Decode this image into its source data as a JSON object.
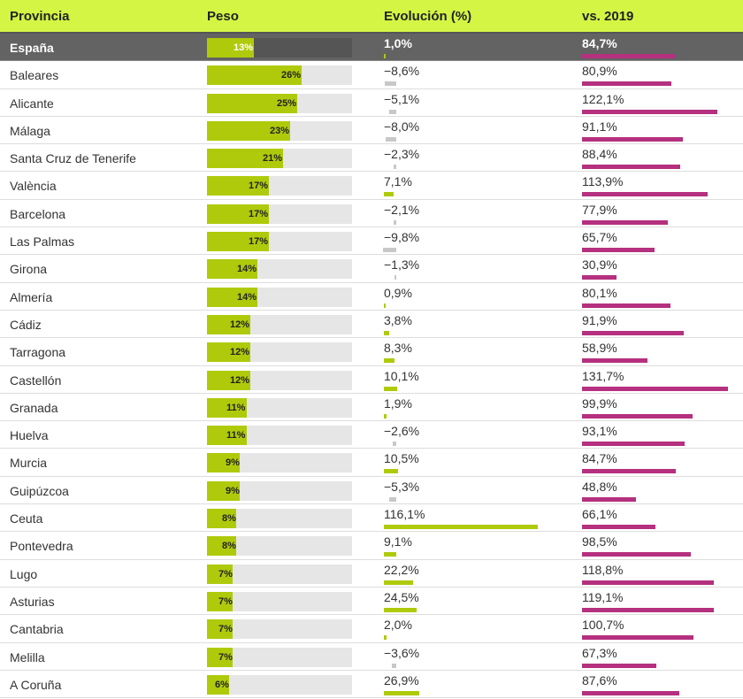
{
  "header": {
    "provincia": "Provincia",
    "peso": "Peso",
    "evolucion": "Evolución (%)",
    "vs2019": "vs. 2019"
  },
  "colors": {
    "header_bg": "#d5f545",
    "peso_bar": "#afca0b",
    "evo_positive": "#afca0b",
    "evo_negative": "#c8c8c8",
    "vs_bar": "#b5307e",
    "highlight_row": "#636363"
  },
  "chart_data": {
    "type": "table",
    "columns": [
      "Provincia",
      "Peso",
      "Evolución (%)",
      "vs. 2019"
    ],
    "rows": [
      {
        "name": "España",
        "peso": 13,
        "peso_label": "13%",
        "evo": 1.0,
        "evo_label": "1,0%",
        "vs": 84.7,
        "vs_label": "84,7%",
        "highlight": true
      },
      {
        "name": "Baleares",
        "peso": 26,
        "peso_label": "26%",
        "evo": -8.6,
        "evo_label": "−8,6%",
        "vs": 80.9,
        "vs_label": "80,9%"
      },
      {
        "name": "Alicante",
        "peso": 25,
        "peso_label": "25%",
        "evo": -5.1,
        "evo_label": "−5,1%",
        "vs": 122.1,
        "vs_label": "122,1%"
      },
      {
        "name": "Málaga",
        "peso": 23,
        "peso_label": "23%",
        "evo": -8.0,
        "evo_label": "−8,0%",
        "vs": 91.1,
        "vs_label": "91,1%"
      },
      {
        "name": "Santa Cruz de Tenerife",
        "peso": 21,
        "peso_label": "21%",
        "evo": -2.3,
        "evo_label": "−2,3%",
        "vs": 88.4,
        "vs_label": "88,4%"
      },
      {
        "name": "València",
        "peso": 17,
        "peso_label": "17%",
        "evo": 7.1,
        "evo_label": "7,1%",
        "vs": 113.9,
        "vs_label": "113,9%"
      },
      {
        "name": "Barcelona",
        "peso": 17,
        "peso_label": "17%",
        "evo": -2.1,
        "evo_label": "−2,1%",
        "vs": 77.9,
        "vs_label": "77,9%"
      },
      {
        "name": "Las Palmas",
        "peso": 17,
        "peso_label": "17%",
        "evo": -9.8,
        "evo_label": "−9,8%",
        "vs": 65.7,
        "vs_label": "65,7%"
      },
      {
        "name": "Girona",
        "peso": 14,
        "peso_label": "14%",
        "evo": -1.3,
        "evo_label": "−1,3%",
        "vs": 30.9,
        "vs_label": "30,9%"
      },
      {
        "name": "Almería",
        "peso": 14,
        "peso_label": "14%",
        "evo": 0.9,
        "evo_label": "0,9%",
        "vs": 80.1,
        "vs_label": "80,1%"
      },
      {
        "name": "Cádiz",
        "peso": 12,
        "peso_label": "12%",
        "evo": 3.8,
        "evo_label": "3,8%",
        "vs": 91.9,
        "vs_label": "91,9%"
      },
      {
        "name": "Tarragona",
        "peso": 12,
        "peso_label": "12%",
        "evo": 8.3,
        "evo_label": "8,3%",
        "vs": 58.9,
        "vs_label": "58,9%"
      },
      {
        "name": "Castellón",
        "peso": 12,
        "peso_label": "12%",
        "evo": 10.1,
        "evo_label": "10,1%",
        "vs": 131.7,
        "vs_label": "131,7%"
      },
      {
        "name": "Granada",
        "peso": 11,
        "peso_label": "11%",
        "evo": 1.9,
        "evo_label": "1,9%",
        "vs": 99.9,
        "vs_label": "99,9%"
      },
      {
        "name": "Huelva",
        "peso": 11,
        "peso_label": "11%",
        "evo": -2.6,
        "evo_label": "−2,6%",
        "vs": 93.1,
        "vs_label": "93,1%"
      },
      {
        "name": "Murcia",
        "peso": 9,
        "peso_label": "9%",
        "evo": 10.5,
        "evo_label": "10,5%",
        "vs": 84.7,
        "vs_label": "84,7%"
      },
      {
        "name": "Guipúzcoa",
        "peso": 9,
        "peso_label": "9%",
        "evo": -5.3,
        "evo_label": "−5,3%",
        "vs": 48.8,
        "vs_label": "48,8%"
      },
      {
        "name": "Ceuta",
        "peso": 8,
        "peso_label": "8%",
        "evo": 116.1,
        "evo_label": "116,1%",
        "vs": 66.1,
        "vs_label": "66,1%"
      },
      {
        "name": "Pontevedra",
        "peso": 8,
        "peso_label": "8%",
        "evo": 9.1,
        "evo_label": "9,1%",
        "vs": 98.5,
        "vs_label": "98,5%"
      },
      {
        "name": "Lugo",
        "peso": 7,
        "peso_label": "7%",
        "evo": 22.2,
        "evo_label": "22,2%",
        "vs": 118.8,
        "vs_label": "118,8%"
      },
      {
        "name": "Asturias",
        "peso": 7,
        "peso_label": "7%",
        "evo": 24.5,
        "evo_label": "24,5%",
        "vs": 119.1,
        "vs_label": "119,1%"
      },
      {
        "name": "Cantabria",
        "peso": 7,
        "peso_label": "7%",
        "evo": 2.0,
        "evo_label": "2,0%",
        "vs": 100.7,
        "vs_label": "100,7%"
      },
      {
        "name": "Melilla",
        "peso": 7,
        "peso_label": "7%",
        "evo": -3.6,
        "evo_label": "−3,6%",
        "vs": 67.3,
        "vs_label": "67,3%"
      },
      {
        "name": "A Coruña",
        "peso": 6,
        "peso_label": "6%",
        "evo": 26.9,
        "evo_label": "26,9%",
        "vs": 87.6,
        "vs_label": "87,6%"
      }
    ]
  }
}
